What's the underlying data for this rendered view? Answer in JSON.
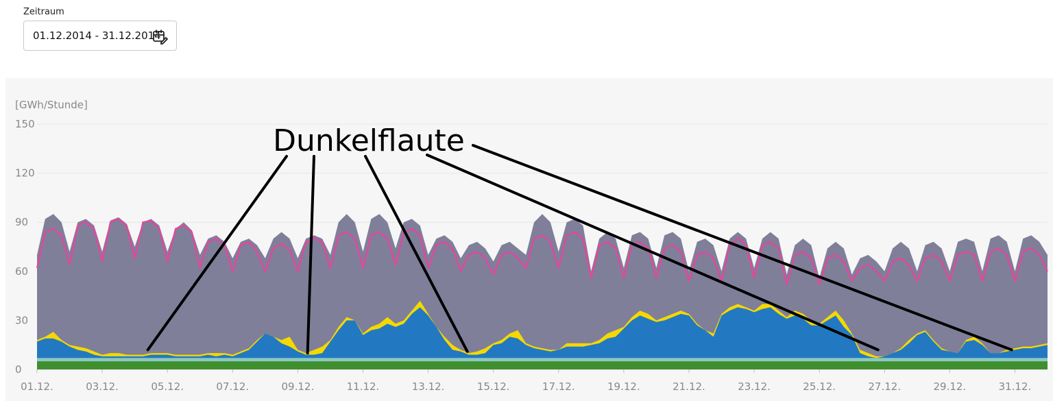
{
  "filter": {
    "label": "Zeitraum",
    "value": "01.12.2014 - 31.12.2014",
    "icon": "calendar-edit-icon"
  },
  "chart_data": {
    "type": "area",
    "ylabel": "[GWh/Stunde]",
    "ylim": [
      0,
      150
    ],
    "yticks": [
      "150",
      "120",
      "90",
      "60",
      "30",
      "0"
    ],
    "ytick_values": [
      150,
      120,
      90,
      60,
      30,
      0
    ],
    "x_ticks": [
      "01.12.",
      "03.12.",
      "05.12.",
      "07.12.",
      "09.12.",
      "11.12.",
      "13.12.",
      "15.12.",
      "17.12.",
      "19.12.",
      "21.12.",
      "23.12.",
      "25.12.",
      "27.12.",
      "29.12.",
      "31.12."
    ],
    "x_tick_days": [
      1,
      3,
      5,
      7,
      9,
      11,
      13,
      15,
      17,
      19,
      21,
      23,
      25,
      27,
      29,
      31
    ],
    "x_range_days": [
      1,
      32
    ],
    "grid": true,
    "colors": {
      "total": "#7f7f9a",
      "wind": "#2279c2",
      "solar": "#f5d800",
      "hydro": "#8cc8c0",
      "biomass": "#3f8f2f",
      "consumption": "#e8449c"
    },
    "series": [
      {
        "key": "total",
        "x": [
          1.0,
          1.25,
          1.5,
          1.75,
          2.0,
          2.25,
          2.5,
          2.75,
          3.0,
          3.25,
          3.5,
          3.75,
          4.0,
          4.25,
          4.5,
          4.75,
          5.0,
          5.25,
          5.5,
          5.75,
          6.0,
          6.25,
          6.5,
          6.75,
          7.0,
          7.25,
          7.5,
          7.75,
          8.0,
          8.25,
          8.5,
          8.75,
          9.0,
          9.25,
          9.5,
          9.75,
          10.0,
          10.25,
          10.5,
          10.75,
          11.0,
          11.25,
          11.5,
          11.75,
          12.0,
          12.25,
          12.5,
          12.75,
          13.0,
          13.25,
          13.5,
          13.75,
          14.0,
          14.25,
          14.5,
          14.75,
          15.0,
          15.25,
          15.5,
          15.75,
          16.0,
          16.25,
          16.5,
          16.75,
          17.0,
          17.25,
          17.5,
          17.75,
          18.0,
          18.25,
          18.5,
          18.75,
          19.0,
          19.25,
          19.5,
          19.75,
          20.0,
          20.25,
          20.5,
          20.75,
          21.0,
          21.25,
          21.5,
          21.75,
          22.0,
          22.25,
          22.5,
          22.75,
          23.0,
          23.25,
          23.5,
          23.75,
          24.0,
          24.25,
          24.5,
          24.75,
          25.0,
          25.25,
          25.5,
          25.75,
          26.0,
          26.25,
          26.5,
          26.75,
          27.0,
          27.25,
          27.5,
          27.75,
          28.0,
          28.25,
          28.5,
          28.75,
          29.0,
          29.25,
          29.5,
          29.75,
          30.0,
          30.25,
          30.5,
          30.75,
          31.0,
          31.25,
          31.5,
          31.75,
          32.0
        ],
        "y": [
          70,
          92,
          95,
          90,
          72,
          90,
          92,
          88,
          72,
          91,
          93,
          89,
          75,
          90,
          92,
          88,
          72,
          86,
          90,
          85,
          70,
          80,
          82,
          78,
          68,
          78,
          80,
          76,
          68,
          80,
          84,
          80,
          68,
          80,
          82,
          80,
          70,
          90,
          95,
          90,
          72,
          92,
          95,
          90,
          74,
          90,
          92,
          88,
          70,
          80,
          82,
          78,
          68,
          76,
          78,
          74,
          66,
          76,
          78,
          74,
          70,
          90,
          95,
          90,
          72,
          90,
          92,
          88,
          60,
          80,
          84,
          80,
          62,
          82,
          84,
          80,
          62,
          82,
          84,
          80,
          60,
          78,
          80,
          76,
          60,
          80,
          84,
          80,
          62,
          80,
          84,
          80,
          58,
          76,
          80,
          76,
          56,
          74,
          78,
          74,
          58,
          68,
          70,
          66,
          60,
          74,
          78,
          74,
          60,
          76,
          78,
          74,
          60,
          78,
          80,
          78,
          60,
          80,
          82,
          78,
          60,
          80,
          82,
          78,
          70
        ],
        "name": ""
      },
      {
        "key": "solar_top",
        "x": [
          1.0,
          1.25,
          1.5,
          1.75,
          2.0,
          2.25,
          2.5,
          2.75,
          3.0,
          3.25,
          3.5,
          3.75,
          4.0,
          4.25,
          4.5,
          4.75,
          5.0,
          5.25,
          5.5,
          5.75,
          6.0,
          6.25,
          6.5,
          6.75,
          7.0,
          7.25,
          7.5,
          7.75,
          8.0,
          8.25,
          8.5,
          8.75,
          9.0,
          9.25,
          9.5,
          9.75,
          10.0,
          10.25,
          10.5,
          10.75,
          11.0,
          11.25,
          11.5,
          11.75,
          12.0,
          12.25,
          12.5,
          12.75,
          13.0,
          13.25,
          13.5,
          13.75,
          14.0,
          14.25,
          14.5,
          14.75,
          15.0,
          15.25,
          15.5,
          15.75,
          16.0,
          16.25,
          16.5,
          16.75,
          17.0,
          17.25,
          17.5,
          17.75,
          18.0,
          18.25,
          18.5,
          18.75,
          19.0,
          19.25,
          19.5,
          19.75,
          20.0,
          20.25,
          20.5,
          20.75,
          21.0,
          21.25,
          21.5,
          21.75,
          22.0,
          22.25,
          22.5,
          22.75,
          23.0,
          23.25,
          23.5,
          23.75,
          24.0,
          24.25,
          24.5,
          24.75,
          25.0,
          25.25,
          25.5,
          25.75,
          26.0,
          26.25,
          26.5,
          26.75,
          27.0,
          27.25,
          27.5,
          27.75,
          28.0,
          28.25,
          28.5,
          28.75,
          29.0,
          29.25,
          29.5,
          29.75,
          30.0,
          30.25,
          30.5,
          30.75,
          31.0,
          31.25,
          31.5,
          31.75,
          32.0
        ],
        "y": [
          18,
          20,
          23,
          18,
          15,
          14,
          13,
          11,
          9,
          10,
          10,
          9,
          9,
          9,
          10,
          10,
          10,
          9,
          9,
          9,
          9,
          10,
          10,
          10,
          9,
          11,
          13,
          18,
          22,
          20,
          18,
          20,
          12,
          10,
          12,
          14,
          18,
          26,
          32,
          30,
          22,
          26,
          28,
          32,
          28,
          30,
          36,
          42,
          34,
          26,
          20,
          15,
          12,
          10,
          11,
          13,
          16,
          18,
          22,
          24,
          16,
          14,
          13,
          12,
          12,
          16,
          16,
          16,
          16,
          18,
          22,
          24,
          26,
          32,
          36,
          34,
          30,
          32,
          34,
          36,
          34,
          28,
          24,
          22,
          34,
          38,
          40,
          38,
          36,
          40,
          40,
          36,
          32,
          36,
          34,
          30,
          28,
          32,
          36,
          30,
          22,
          12,
          10,
          8,
          8,
          10,
          13,
          18,
          22,
          24,
          18,
          13,
          11,
          10,
          18,
          20,
          16,
          10,
          10,
          12,
          13,
          14,
          14,
          15,
          16
        ],
        "name": ""
      },
      {
        "key": "wind",
        "x": [
          1.0,
          1.25,
          1.5,
          1.75,
          2.0,
          2.25,
          2.5,
          2.75,
          3.0,
          3.25,
          3.5,
          3.75,
          4.0,
          4.25,
          4.5,
          4.75,
          5.0,
          5.25,
          5.5,
          5.75,
          6.0,
          6.25,
          6.5,
          6.75,
          7.0,
          7.25,
          7.5,
          7.75,
          8.0,
          8.25,
          8.5,
          8.75,
          9.0,
          9.25,
          9.5,
          9.75,
          10.0,
          10.25,
          10.5,
          10.75,
          11.0,
          11.25,
          11.5,
          11.75,
          12.0,
          12.25,
          12.5,
          12.75,
          13.0,
          13.25,
          13.5,
          13.75,
          14.0,
          14.25,
          14.5,
          14.75,
          15.0,
          15.25,
          15.5,
          15.75,
          16.0,
          16.25,
          16.5,
          16.75,
          17.0,
          17.25,
          17.5,
          17.75,
          18.0,
          18.25,
          18.5,
          18.75,
          19.0,
          19.25,
          19.5,
          19.75,
          20.0,
          20.25,
          20.5,
          20.75,
          21.0,
          21.25,
          21.5,
          21.75,
          22.0,
          22.25,
          22.5,
          22.75,
          23.0,
          23.25,
          23.5,
          23.75,
          24.0,
          24.25,
          24.5,
          24.75,
          25.0,
          25.25,
          25.5,
          25.75,
          26.0,
          26.25,
          26.5,
          26.75,
          27.0,
          27.25,
          27.5,
          27.75,
          28.0,
          28.25,
          28.5,
          28.75,
          29.0,
          29.25,
          29.5,
          29.75,
          30.0,
          30.25,
          30.5,
          30.75,
          31.0,
          31.25,
          31.5,
          31.75,
          32.0
        ],
        "y": [
          17,
          19,
          19,
          17,
          14,
          12,
          11,
          9,
          8,
          8,
          8,
          8,
          8,
          8,
          9,
          9,
          9,
          8,
          8,
          8,
          8,
          9,
          8,
          9,
          8,
          10,
          12,
          17,
          22,
          20,
          16,
          14,
          11,
          9,
          9,
          10,
          17,
          24,
          30,
          30,
          21,
          24,
          25,
          28,
          26,
          28,
          34,
          38,
          33,
          26,
          18,
          12,
          11,
          9,
          9,
          10,
          15,
          16,
          20,
          19,
          15,
          13,
          12,
          11,
          12,
          14,
          14,
          14,
          15,
          16,
          19,
          20,
          25,
          30,
          33,
          31,
          29,
          30,
          32,
          34,
          33,
          27,
          24,
          20,
          33,
          36,
          38,
          37,
          35,
          37,
          38,
          34,
          31,
          33,
          31,
          27,
          27,
          30,
          33,
          26,
          21,
          10,
          8,
          7,
          8,
          10,
          12,
          16,
          21,
          23,
          17,
          12,
          11,
          10,
          17,
          18,
          15,
          10,
          10,
          11,
          12,
          13,
          13,
          14,
          15
        ],
        "name": ""
      },
      {
        "key": "hydro_top",
        "x": [
          1,
          32
        ],
        "y": [
          7,
          7
        ],
        "name": ""
      },
      {
        "key": "biomass",
        "x": [
          1,
          32
        ],
        "y": [
          5,
          5
        ],
        "name": ""
      },
      {
        "key": "consumption",
        "x": [
          1.0,
          1.25,
          1.5,
          1.75,
          2.0,
          2.25,
          2.5,
          2.75,
          3.0,
          3.25,
          3.5,
          3.75,
          4.0,
          4.25,
          4.5,
          4.75,
          5.0,
          5.25,
          5.5,
          5.75,
          6.0,
          6.25,
          6.5,
          6.75,
          7.0,
          7.25,
          7.5,
          7.75,
          8.0,
          8.25,
          8.5,
          8.75,
          9.0,
          9.25,
          9.5,
          9.75,
          10.0,
          10.25,
          10.5,
          10.75,
          11.0,
          11.25,
          11.5,
          11.75,
          12.0,
          12.25,
          12.5,
          12.75,
          13.0,
          13.25,
          13.5,
          13.75,
          14.0,
          14.25,
          14.5,
          14.75,
          15.0,
          15.25,
          15.5,
          15.75,
          16.0,
          16.25,
          16.5,
          16.75,
          17.0,
          17.25,
          17.5,
          17.75,
          18.0,
          18.25,
          18.5,
          18.75,
          19.0,
          19.25,
          19.5,
          19.75,
          20.0,
          20.25,
          20.5,
          20.75,
          21.0,
          21.25,
          21.5,
          21.75,
          22.0,
          22.25,
          22.5,
          22.75,
          23.0,
          23.25,
          23.5,
          23.75,
          24.0,
          24.25,
          24.5,
          24.75,
          25.0,
          25.25,
          25.5,
          25.75,
          26.0,
          26.25,
          26.5,
          26.75,
          27.0,
          27.25,
          27.5,
          27.75,
          28.0,
          28.25,
          28.5,
          28.75,
          29.0,
          29.25,
          29.5,
          29.75,
          30.0,
          30.25,
          30.5,
          30.75,
          31.0,
          31.25,
          31.5,
          31.75,
          32.0
        ],
        "y": [
          62,
          84,
          86,
          82,
          64,
          88,
          90,
          86,
          66,
          90,
          92,
          88,
          68,
          90,
          91,
          86,
          66,
          86,
          88,
          84,
          62,
          78,
          80,
          76,
          60,
          76,
          78,
          72,
          60,
          74,
          77,
          73,
          60,
          78,
          80,
          78,
          62,
          82,
          84,
          80,
          62,
          82,
          84,
          80,
          64,
          84,
          86,
          82,
          62,
          76,
          78,
          74,
          60,
          70,
          72,
          68,
          58,
          70,
          72,
          68,
          62,
          80,
          82,
          78,
          62,
          82,
          84,
          80,
          56,
          76,
          78,
          74,
          56,
          76,
          78,
          74,
          56,
          74,
          76,
          72,
          54,
          70,
          72,
          68,
          54,
          76,
          80,
          76,
          56,
          76,
          78,
          74,
          52,
          70,
          72,
          68,
          52,
          68,
          70,
          66,
          54,
          62,
          64,
          60,
          54,
          66,
          68,
          64,
          54,
          68,
          70,
          66,
          54,
          70,
          72,
          70,
          54,
          72,
          74,
          70,
          54,
          72,
          74,
          70,
          60
        ],
        "name": ""
      }
    ],
    "annotation": {
      "text": "Dunkelflaute",
      "targets_days": [
        4.4,
        9.3,
        14.2,
        26.8,
        30.9
      ]
    }
  }
}
